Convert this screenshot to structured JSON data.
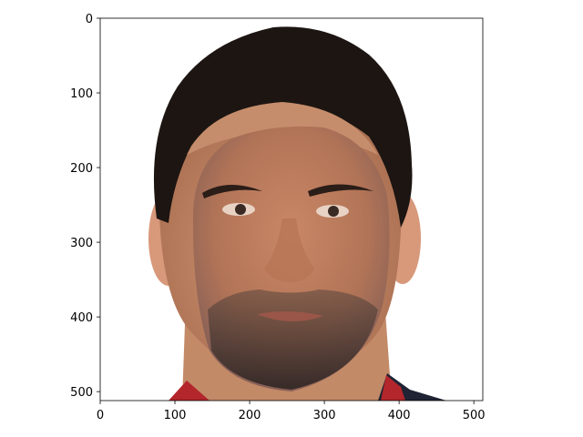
{
  "figure": {
    "background": "#ffffff",
    "image_subject": "face-swap-composite-portrait",
    "colors": {
      "hair": "#1c1512",
      "skin_outer": "#c98f6e",
      "skin_inner": "#b87a58",
      "beard": "#3a2c26",
      "shirt_red": "#b3262b",
      "shirt_dark": "#1f2333"
    }
  },
  "chart_data": {
    "type": "image",
    "x": {
      "range": [
        0,
        512
      ],
      "ticks": [
        0,
        100,
        200,
        300,
        400,
        500
      ]
    },
    "y": {
      "range": [
        0,
        512
      ],
      "inverted": true,
      "ticks": [
        0,
        100,
        200,
        300,
        400,
        500
      ]
    },
    "grid": false,
    "legend": "none"
  }
}
